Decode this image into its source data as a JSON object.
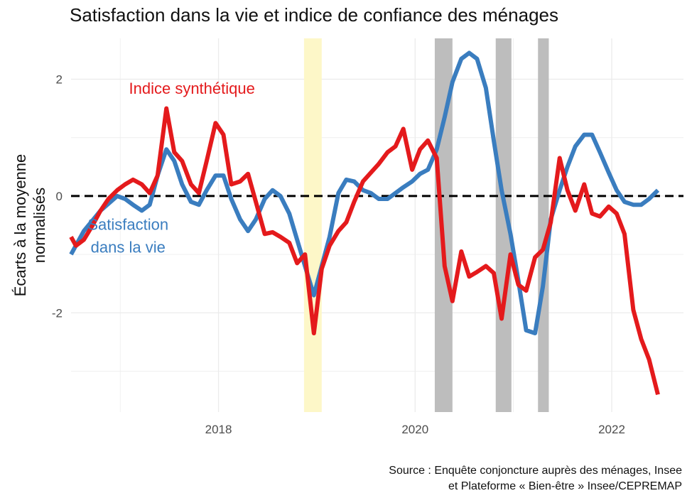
{
  "chart_data": {
    "type": "line",
    "title": "Satisfaction dans la vie et indice de confiance des ménages",
    "xlabel": "",
    "ylabel": [
      "Écarts à la moyenne",
      "normalisés"
    ],
    "xlim": [
      2016.5,
      2022.73
    ],
    "ylim": [
      -3.7,
      2.7
    ],
    "xticks": [
      {
        "v": 2018,
        "label": "2018"
      },
      {
        "v": 2020,
        "label": "2020"
      },
      {
        "v": 2022,
        "label": "2022"
      }
    ],
    "yticks": [
      {
        "v": -2,
        "label": "-2"
      },
      {
        "v": 0,
        "label": "0"
      },
      {
        "v": 2,
        "label": "2"
      }
    ],
    "reference_line": {
      "y": 0,
      "style": "dashed",
      "color": "#000000"
    },
    "shaded_periods": [
      {
        "x0": 2018.87,
        "x1": 2019.05,
        "color": "#fdf7c8"
      },
      {
        "x0": 2020.2,
        "x1": 2020.38,
        "color": "#bdbdbd"
      },
      {
        "x0": 2020.82,
        "x1": 2020.98,
        "color": "#bdbdbd"
      },
      {
        "x0": 2021.25,
        "x1": 2021.36,
        "color": "#bdbdbd"
      }
    ],
    "series": [
      {
        "name": "Indice synthétique",
        "label_lines": [
          "Indice synthétique"
        ],
        "label_at": [
          2017.73,
          1.75
        ],
        "color": "#e41a1c",
        "x": [
          2016.5,
          2016.55,
          2016.63,
          2016.72,
          2016.8,
          2016.88,
          2016.97,
          2017.05,
          2017.13,
          2017.22,
          2017.3,
          2017.38,
          2017.47,
          2017.55,
          2017.63,
          2017.72,
          2017.8,
          2017.88,
          2017.97,
          2018.05,
          2018.13,
          2018.22,
          2018.3,
          2018.38,
          2018.47,
          2018.55,
          2018.63,
          2018.72,
          2018.8,
          2018.88,
          2018.97,
          2019.05,
          2019.13,
          2019.22,
          2019.3,
          2019.38,
          2019.47,
          2019.55,
          2019.63,
          2019.72,
          2019.8,
          2019.88,
          2019.97,
          2020.05,
          2020.13,
          2020.22,
          2020.3,
          2020.38,
          2020.47,
          2020.55,
          2020.63,
          2020.72,
          2020.8,
          2020.88,
          2020.97,
          2021.05,
          2021.13,
          2021.22,
          2021.3,
          2021.38,
          2021.47,
          2021.55,
          2021.63,
          2021.72,
          2021.8,
          2021.88,
          2021.97,
          2022.05,
          2022.13,
          2022.22,
          2022.3,
          2022.38,
          2022.47
        ],
        "y": [
          -0.7,
          -0.85,
          -0.75,
          -0.5,
          -0.25,
          -0.05,
          0.1,
          0.2,
          0.28,
          0.2,
          0.05,
          0.35,
          1.5,
          0.75,
          0.6,
          0.2,
          0.05,
          0.6,
          1.25,
          1.05,
          0.2,
          0.25,
          0.38,
          -0.1,
          -0.65,
          -0.62,
          -0.7,
          -0.8,
          -1.15,
          -1.0,
          -2.35,
          -1.25,
          -0.85,
          -0.6,
          -0.45,
          -0.1,
          0.25,
          0.4,
          0.55,
          0.75,
          0.85,
          1.15,
          0.45,
          0.8,
          0.95,
          0.65,
          -1.2,
          -1.8,
          -0.95,
          -1.38,
          -1.3,
          -1.2,
          -1.32,
          -2.1,
          -1.0,
          -1.52,
          -1.62,
          -1.05,
          -0.92,
          -0.45,
          0.65,
          0.1,
          -0.25,
          0.2,
          -0.3,
          -0.35,
          -0.18,
          -0.3,
          -0.65,
          -1.95,
          -2.45,
          -2.8,
          -3.4
        ]
      },
      {
        "name": "Satisfaction dans la vie",
        "label_lines": [
          "Satisfaction",
          "dans la vie"
        ],
        "label_at": [
          2017.08,
          -0.58
        ],
        "color": "#3a7dbf",
        "x": [
          2016.5,
          2016.63,
          2016.8,
          2016.97,
          2017.05,
          2017.13,
          2017.22,
          2017.3,
          2017.38,
          2017.47,
          2017.55,
          2017.63,
          2017.72,
          2017.8,
          2017.88,
          2017.97,
          2018.05,
          2018.13,
          2018.22,
          2018.3,
          2018.38,
          2018.47,
          2018.55,
          2018.63,
          2018.72,
          2018.8,
          2018.88,
          2018.97,
          2019.05,
          2019.13,
          2019.22,
          2019.3,
          2019.38,
          2019.47,
          2019.55,
          2019.63,
          2019.72,
          2019.8,
          2019.88,
          2019.97,
          2020.05,
          2020.13,
          2020.22,
          2020.3,
          2020.38,
          2020.47,
          2020.55,
          2020.63,
          2020.72,
          2020.8,
          2020.88,
          2020.97,
          2021.05,
          2021.13,
          2021.22,
          2021.3,
          2021.38,
          2021.47,
          2021.55,
          2021.63,
          2021.72,
          2021.8,
          2021.88,
          2021.97,
          2022.05,
          2022.13,
          2022.22,
          2022.3,
          2022.38,
          2022.47
        ],
        "y": [
          -1.0,
          -0.6,
          -0.25,
          0.0,
          -0.05,
          -0.15,
          -0.25,
          -0.15,
          0.35,
          0.8,
          0.6,
          0.2,
          -0.1,
          -0.15,
          0.1,
          0.35,
          0.35,
          -0.05,
          -0.4,
          -0.6,
          -0.4,
          -0.05,
          0.1,
          0.0,
          -0.3,
          -0.75,
          -1.2,
          -1.7,
          -1.2,
          -0.7,
          0.05,
          0.28,
          0.25,
          0.1,
          0.05,
          -0.05,
          -0.05,
          0.05,
          0.15,
          0.25,
          0.38,
          0.45,
          0.8,
          1.35,
          1.95,
          2.35,
          2.45,
          2.35,
          1.85,
          0.95,
          0.1,
          -0.65,
          -1.45,
          -2.3,
          -2.35,
          -1.55,
          -0.4,
          0.1,
          0.5,
          0.85,
          1.05,
          1.05,
          0.75,
          0.4,
          0.1,
          -0.1,
          -0.15,
          -0.15,
          -0.05,
          0.1
        ]
      }
    ]
  },
  "captions": [
    "Source : Enquête conjoncture auprès des ménages, Insee",
    "et Plateforme « Bien-être » Insee/CEPREMAP"
  ]
}
